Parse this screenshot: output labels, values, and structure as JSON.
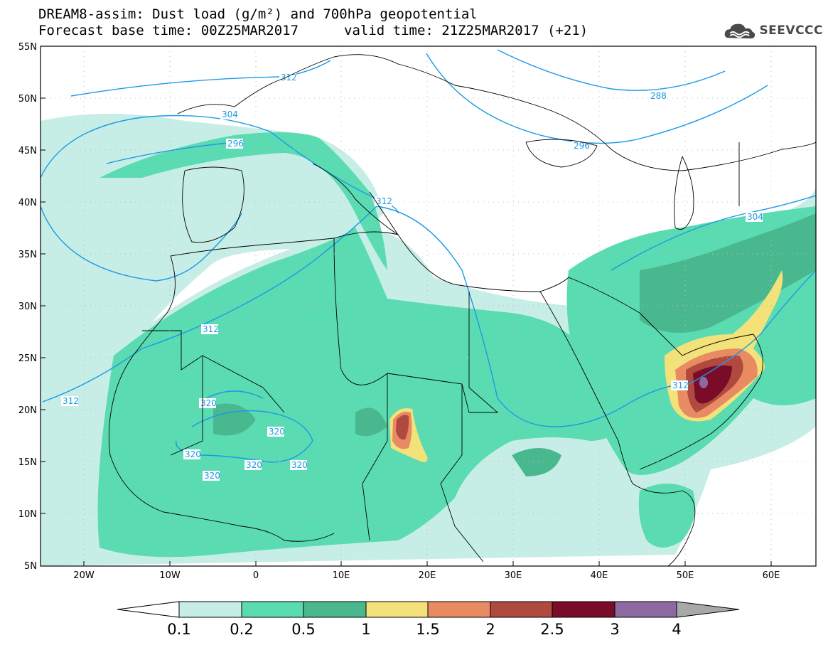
{
  "header": {
    "title_line1": "DREAM8-assim: Dust load (g/m²) and 700hPa geopotential",
    "title_line2_left": "Forecast base time: 00Z25MAR2017",
    "title_line2_right": "valid time: 21Z25MAR2017 (+21)"
  },
  "logo": {
    "text": "SEEVCCC",
    "icon": "cloud-icon"
  },
  "axes": {
    "lat_labels": [
      "55N",
      "50N",
      "45N",
      "40N",
      "35N",
      "30N",
      "25N",
      "20N",
      "15N",
      "10N",
      "5N"
    ],
    "lon_labels": [
      "20W",
      "10W",
      "0",
      "10E",
      "20E",
      "30E",
      "40E",
      "50E",
      "60E"
    ],
    "lat_range": [
      5,
      55
    ],
    "lon_range": [
      -25,
      65
    ]
  },
  "colorbar": {
    "labels": [
      "0.1",
      "0.2",
      "0.5",
      "1",
      "1.5",
      "2",
      "2.5",
      "3",
      "4"
    ],
    "colors": [
      "#c7eee6",
      "#5bdbb1",
      "#4ab88f",
      "#f3e27a",
      "#e88b62",
      "#b04a3e",
      "#7a0c2a",
      "#8c6aa0",
      "#a8a8a8"
    ]
  },
  "contours": {
    "color": "#1a9ae6",
    "labels": [
      "312",
      "304",
      "296",
      "288",
      "296",
      "312",
      "304",
      "312",
      "312",
      "320",
      "320",
      "320",
      "320",
      "320",
      "320",
      "312"
    ]
  }
}
